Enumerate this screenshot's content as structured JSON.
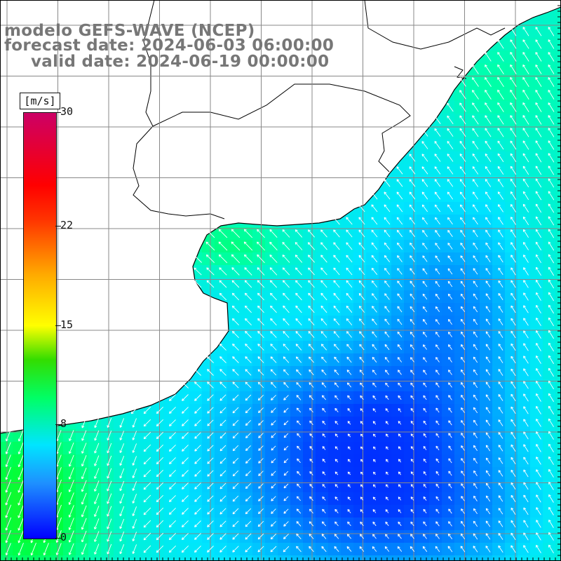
{
  "title": {
    "line1": "modelo GEFS-WAVE (NCEP)",
    "line2": "forecast date: 2024-06-03 06:00:00",
    "line3": "valid date: 2024-06-19 00:00:00"
  },
  "colorbar": {
    "unit": "[m/s]",
    "ticks": [
      {
        "label": "30",
        "value": 30
      },
      {
        "label": "22",
        "value": 22
      },
      {
        "label": "15",
        "value": 15
      },
      {
        "label": "8",
        "value": 8
      },
      {
        "label": "0",
        "value": 0
      }
    ],
    "min": 0,
    "max": 30
  },
  "colors": {
    "land": "#ffffff",
    "grid": "#888888",
    "coast": "#000000",
    "arrow": "#ffffff",
    "title": "#777777"
  }
}
